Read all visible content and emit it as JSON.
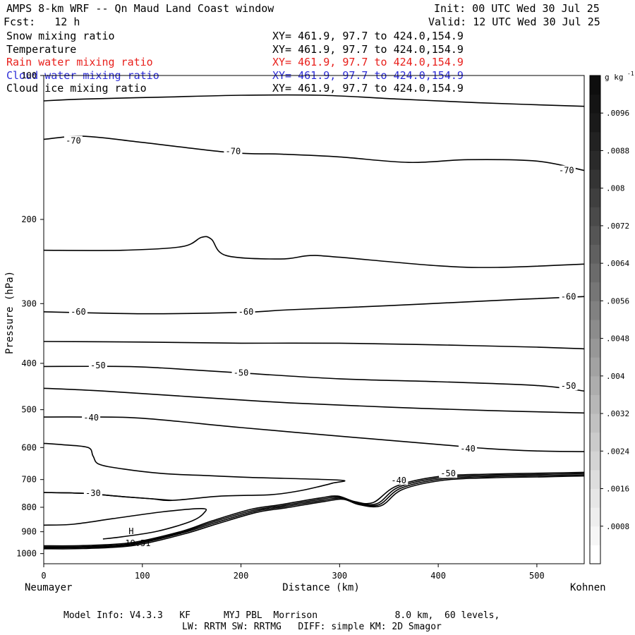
{
  "header": {
    "title": "AMPS 8-km WRF -- Qn Maud Land Coast window",
    "init": "Init: 00 UTC Wed 30 Jul 25",
    "fcst": "Fcst:   12 h",
    "valid": "Valid: 12 UTC Wed 30 Jul 25"
  },
  "fields": [
    {
      "name": "Snow mixing ratio",
      "xy": "XY= 461.9, 97.7 to 424.0,154.9",
      "color": "#000000"
    },
    {
      "name": "Temperature",
      "xy": "XY= 461.9, 97.7 to 424.0,154.9",
      "color": "#000000"
    },
    {
      "name": "Rain water mixing ratio",
      "xy": "XY= 461.9, 97.7 to 424.0,154.9",
      "color": "#e8201c"
    },
    {
      "name": "Cloud water mixing ratio",
      "xy": "XY= 461.9, 97.7 to 424.0,154.9",
      "color": "#2b2bd6"
    },
    {
      "name": "Cloud ice mixing ratio",
      "xy": "XY= 461.9, 97.7 to 424.0,154.9",
      "color": "#000000"
    }
  ],
  "footer": {
    "line1": "Model Info: V4.3.3   KF      MYJ PBL  Morrison              8.0 km,  60 levels,",
    "line2": "LW: RRTM SW: RRTMG   DIFF: simple KM: 2D Smagor"
  },
  "chart_data": {
    "type": "line",
    "xlabel": "Distance (km)",
    "ylabel": "Pressure (hPa)",
    "x_left_label": "Neumayer",
    "x_right_label": "Kohnen",
    "xlim": [
      0,
      548
    ],
    "ylim": [
      1050,
      100
    ],
    "y_scale": "log",
    "xticks": [
      0,
      100,
      200,
      300,
      400,
      500
    ],
    "yticks": [
      100,
      200,
      300,
      400,
      500,
      600,
      700,
      800,
      900,
      1000
    ],
    "colorbar": {
      "unit": "g kg",
      "unit_exponent": "-1",
      "ticks": [
        ".0096",
        ".0088",
        ".008",
        ".0072",
        ".0064",
        ".0056",
        ".0048",
        ".004",
        ".0032",
        ".0024",
        ".0016",
        ".0008"
      ],
      "tick_values": [
        0.0096,
        0.0088,
        0.008,
        0.0072,
        0.0064,
        0.0056,
        0.0048,
        0.004,
        0.0032,
        0.0024,
        0.0016,
        0.0008
      ],
      "range": [
        0,
        0.0104
      ],
      "colors": [
        "#ffffff",
        "#f6f6f6",
        "#eeeeee",
        "#e6e6e6",
        "#dddddd",
        "#d4d4d4",
        "#cbcbcb",
        "#c1c1c1",
        "#b7b7b7",
        "#adadad",
        "#a2a2a2",
        "#979797",
        "#8c8c8c",
        "#818181",
        "#767676",
        "#6b6b6b",
        "#606060",
        "#555555",
        "#4a4a4a",
        "#3f3f3f",
        "#343434",
        "#2a2a2a",
        "#222222",
        "#1a1a1a",
        "#141414",
        "#0e0e0e"
      ]
    },
    "contours": [
      {
        "level": "",
        "points": [
          [
            0,
            113
          ],
          [
            40,
            112
          ],
          [
            120,
            111
          ],
          [
            200,
            110
          ],
          [
            280,
            110
          ],
          [
            360,
            112
          ],
          [
            440,
            114
          ],
          [
            548,
            116
          ]
        ]
      },
      {
        "level": "-70",
        "points": [
          [
            0,
            136
          ],
          [
            40,
            134
          ],
          [
            100,
            138
          ],
          [
            190,
            145
          ],
          [
            240,
            146
          ],
          [
            300,
            148
          ],
          [
            370,
            152
          ],
          [
            430,
            150
          ],
          [
            500,
            151
          ],
          [
            548,
            158
          ]
        ]
      },
      {
        "level": "",
        "points": [
          [
            0,
            232
          ],
          [
            80,
            232
          ],
          [
            140,
            228
          ],
          [
            160,
            218
          ],
          [
            170,
            220
          ],
          [
            185,
            238
          ],
          [
            240,
            242
          ],
          [
            270,
            238
          ],
          [
            300,
            240
          ],
          [
            400,
            250
          ],
          [
            460,
            252
          ],
          [
            548,
            248
          ]
        ]
      },
      {
        "level": "-60",
        "points": [
          [
            0,
            312
          ],
          [
            100,
            315
          ],
          [
            200,
            313
          ],
          [
            250,
            309
          ],
          [
            350,
            303
          ],
          [
            450,
            296
          ],
          [
            548,
            290
          ]
        ]
      },
      {
        "level": "",
        "points": [
          [
            0,
            360
          ],
          [
            100,
            361
          ],
          [
            200,
            363
          ],
          [
            300,
            363
          ],
          [
            400,
            366
          ],
          [
            500,
            370
          ],
          [
            548,
            373
          ]
        ]
      },
      {
        "level": "-50",
        "points": [
          [
            0,
            406
          ],
          [
            80,
            406
          ],
          [
            120,
            409
          ],
          [
            200,
            419
          ],
          [
            300,
            431
          ],
          [
            400,
            437
          ],
          [
            500,
            445
          ],
          [
            548,
            457
          ]
        ]
      },
      {
        "level": "",
        "points": [
          [
            0,
            451
          ],
          [
            60,
            457
          ],
          [
            150,
            470
          ],
          [
            250,
            484
          ],
          [
            350,
            494
          ],
          [
            450,
            502
          ],
          [
            548,
            508
          ]
        ]
      },
      {
        "level": "-40",
        "points": [
          [
            0,
            518
          ],
          [
            40,
            518
          ],
          [
            100,
            521
          ],
          [
            200,
            545
          ],
          [
            300,
            568
          ],
          [
            400,
            591
          ],
          [
            450,
            603
          ],
          [
            500,
            610
          ],
          [
            548,
            612
          ]
        ]
      },
      {
        "level": "",
        "points": [
          [
            0,
            588
          ],
          [
            20,
            592
          ],
          [
            45,
            600
          ],
          [
            50,
            625
          ],
          [
            56,
            650
          ],
          [
            80,
            665
          ],
          [
            120,
            680
          ],
          [
            160,
            686
          ],
          [
            210,
            693
          ],
          [
            300,
            702
          ],
          [
            293,
            712
          ],
          [
            278,
            725
          ],
          [
            258,
            740
          ],
          [
            230,
            753
          ],
          [
            180,
            758
          ],
          [
            130,
            774
          ],
          [
            110,
            768
          ],
          [
            80,
            760
          ],
          [
            40,
            748
          ],
          [
            0,
            745
          ]
        ]
      },
      {
        "level": "-30",
        "points": [
          [
            0,
            745
          ],
          [
            40,
            748
          ],
          [
            80,
            760
          ],
          [
            110,
            768
          ],
          [
            130,
            774
          ]
        ]
      },
      {
        "level": "",
        "points": [
          [
            0,
            872
          ],
          [
            30,
            868
          ],
          [
            70,
            845
          ],
          [
            120,
            818
          ],
          [
            160,
            805
          ],
          [
            163,
            820
          ],
          [
            150,
            855
          ],
          [
            115,
            898
          ],
          [
            80,
            922
          ],
          [
            60,
            932
          ]
        ]
      },
      {
        "level": "",
        "points": [
          [
            0,
            963
          ],
          [
            40,
            962
          ],
          [
            90,
            948
          ],
          [
            140,
            898
          ],
          [
            170,
            855
          ],
          [
            210,
            808
          ],
          [
            240,
            790
          ],
          [
            280,
            765
          ],
          [
            298,
            758
          ],
          [
            315,
            778
          ],
          [
            334,
            782
          ],
          [
            358,
            722
          ],
          [
            400,
            690
          ],
          [
            450,
            682
          ],
          [
            500,
            679
          ],
          [
            548,
            676
          ]
        ]
      },
      {
        "level": "",
        "points": [
          [
            0,
            968
          ],
          [
            40,
            967
          ],
          [
            90,
            953
          ],
          [
            140,
            902
          ],
          [
            172,
            858
          ],
          [
            212,
            812
          ],
          [
            242,
            794
          ],
          [
            282,
            769
          ],
          [
            300,
            762
          ],
          [
            316,
            782
          ],
          [
            338,
            786
          ],
          [
            360,
            726
          ],
          [
            402,
            694
          ],
          [
            452,
            686
          ],
          [
            502,
            683
          ],
          [
            548,
            680
          ]
        ]
      },
      {
        "level": "",
        "points": [
          [
            0,
            972
          ],
          [
            40,
            971
          ],
          [
            90,
            957
          ],
          [
            140,
            906
          ],
          [
            174,
            862
          ],
          [
            214,
            816
          ],
          [
            244,
            798
          ],
          [
            284,
            773
          ],
          [
            302,
            766
          ],
          [
            318,
            786
          ],
          [
            340,
            790
          ],
          [
            362,
            730
          ],
          [
            404,
            698
          ],
          [
            454,
            690
          ],
          [
            504,
            687
          ],
          [
            548,
            684
          ]
        ]
      },
      {
        "level": "",
        "points": [
          [
            0,
            977
          ],
          [
            40,
            976
          ],
          [
            92,
            961
          ],
          [
            142,
            910
          ],
          [
            176,
            866
          ],
          [
            216,
            820
          ],
          [
            246,
            802
          ],
          [
            286,
            777
          ],
          [
            304,
            770
          ],
          [
            320,
            790
          ],
          [
            342,
            794
          ],
          [
            364,
            734
          ],
          [
            406,
            702
          ],
          [
            456,
            694
          ],
          [
            506,
            691
          ],
          [
            548,
            688
          ]
        ]
      }
    ],
    "contour_labels": [
      {
        "text": "-70",
        "x": 30,
        "p": 137
      },
      {
        "text": "-70",
        "x": 192,
        "p": 144
      },
      {
        "text": "-70",
        "x": 530,
        "p": 158
      },
      {
        "text": "-60",
        "x": 35,
        "p": 312
      },
      {
        "text": "-60",
        "x": 205,
        "p": 312
      },
      {
        "text": "-60",
        "x": 532,
        "p": 290
      },
      {
        "text": "-50",
        "x": 55,
        "p": 404
      },
      {
        "text": "-50",
        "x": 200,
        "p": 419
      },
      {
        "text": "-50",
        "x": 532,
        "p": 446
      },
      {
        "text": "-40",
        "x": 48,
        "p": 520
      },
      {
        "text": "-40",
        "x": 430,
        "p": 603
      },
      {
        "text": "-40",
        "x": 360,
        "p": 703
      },
      {
        "text": "-50",
        "x": 410,
        "p": 680
      },
      {
        "text": "-30",
        "x": 50,
        "p": 748
      }
    ],
    "extremum": {
      "marker": "H",
      "value": "-19.51",
      "x": 80,
      "p": 920
    }
  }
}
